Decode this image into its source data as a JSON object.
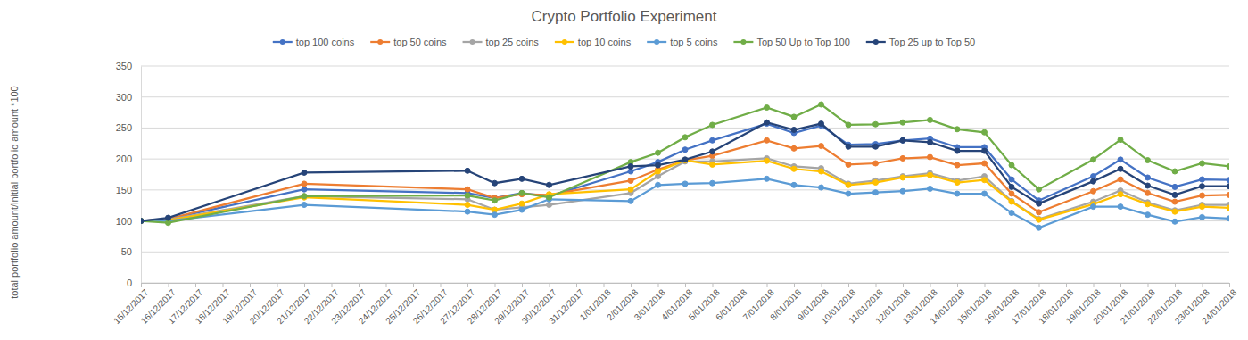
{
  "chart_data": {
    "type": "line",
    "title": "Crypto Portfolio Experiment",
    "y_label": "total portfolio amount/initial portfolio amount *100",
    "x": [
      "15/12/2017",
      "16/12/2017",
      "21/12/2017",
      "27/12/2017",
      "28/12/2017",
      "29/12/2017",
      "30/12/2017",
      "2/01/2018",
      "3/01/2018",
      "4/01/2018",
      "5/01/2018",
      "7/01/2018",
      "8/01/2018",
      "9/01/2018",
      "10/01/2018",
      "11/01/2018",
      "12/01/2018",
      "13/01/2018",
      "14/01/2018",
      "15/01/2018",
      "16/01/2018",
      "17/01/2018",
      "19/01/2018",
      "20/01/2018",
      "21/01/2018",
      "22/01/2018",
      "23/01/2018",
      "24/01/2018"
    ],
    "xlim": [
      "15/12/2017",
      "24/01/2018"
    ],
    "xticks": [
      "15/12/2017",
      "16/12/2017",
      "17/12/2017",
      "18/12/2017",
      "19/12/2017",
      "20/12/2017",
      "21/12/2017",
      "22/12/2017",
      "23/12/2017",
      "24/12/2017",
      "25/12/2017",
      "26/12/2017",
      "27/12/2017",
      "28/12/2017",
      "29/12/2017",
      "30/12/2017",
      "31/12/2017",
      "1/01/2018",
      "2/01/2018",
      "3/01/2018",
      "4/01/2018",
      "5/01/2018",
      "6/01/2018",
      "7/01/2018",
      "8/01/2018",
      "9/01/2018",
      "10/01/2018",
      "11/01/2018",
      "12/01/2018",
      "13/01/2018",
      "14/01/2018",
      "15/01/2018",
      "16/01/2018",
      "17/01/2018",
      "18/01/2018",
      "19/01/2018",
      "20/01/2018",
      "21/01/2018",
      "22/01/2018",
      "23/01/2018",
      "24/01/2018"
    ],
    "ylim": [
      0,
      350
    ],
    "yticks": [
      0,
      50,
      100,
      150,
      200,
      250,
      300,
      350
    ],
    "grid": true,
    "legend": "top",
    "marker": "circle",
    "series": [
      {
        "name": "top 100 coins",
        "color": "#4472C4",
        "values": [
          100,
          103,
          151,
          145,
          137,
          145,
          140,
          180,
          195,
          215,
          230,
          257,
          242,
          254,
          223,
          224,
          230,
          233,
          219,
          219,
          167,
          133,
          172,
          199,
          170,
          155,
          167,
          166
        ]
      },
      {
        "name": "top 50 coins",
        "color": "#ED7D31",
        "values": [
          100,
          103,
          160,
          151,
          137,
          143,
          142,
          165,
          183,
          198,
          205,
          230,
          217,
          221,
          191,
          193,
          201,
          203,
          190,
          193,
          144,
          114,
          148,
          167,
          145,
          131,
          141,
          142
        ]
      },
      {
        "name": "top 25 coins",
        "color": "#A5A5A5",
        "values": [
          100,
          102,
          140,
          135,
          118,
          122,
          126,
          145,
          172,
          196,
          196,
          201,
          188,
          185,
          160,
          165,
          172,
          177,
          165,
          172,
          132,
          103,
          131,
          149,
          130,
          117,
          126,
          126
        ]
      },
      {
        "name": "top 10 coins",
        "color": "#FFC000",
        "values": [
          100,
          101,
          138,
          126,
          118,
          128,
          143,
          151,
          180,
          198,
          191,
          197,
          184,
          180,
          158,
          162,
          170,
          174,
          162,
          166,
          131,
          102,
          127,
          143,
          127,
          115,
          123,
          121
        ]
      },
      {
        "name": "top 5 coins",
        "color": "#5B9BD5",
        "values": [
          100,
          100,
          126,
          115,
          110,
          118,
          135,
          132,
          158,
          160,
          161,
          168,
          158,
          154,
          144,
          146,
          148,
          152,
          144,
          144,
          113,
          89,
          123,
          123,
          110,
          99,
          106,
          104
        ]
      },
      {
        "name": "Top 50 Up to Top 100",
        "color": "#70AD47",
        "values": [
          100,
          97,
          140,
          141,
          133,
          145,
          138,
          195,
          210,
          235,
          255,
          283,
          268,
          288,
          255,
          256,
          259,
          263,
          248,
          243,
          190,
          151,
          199,
          231,
          198,
          180,
          193,
          188
        ]
      },
      {
        "name": "Top 25 up to Top 50",
        "color": "#264478",
        "values": [
          100,
          105,
          178,
          181,
          161,
          168,
          158,
          188,
          190,
          199,
          212,
          259,
          247,
          257,
          220,
          220,
          230,
          227,
          213,
          213,
          155,
          128,
          164,
          184,
          157,
          142,
          156,
          156
        ]
      }
    ]
  }
}
